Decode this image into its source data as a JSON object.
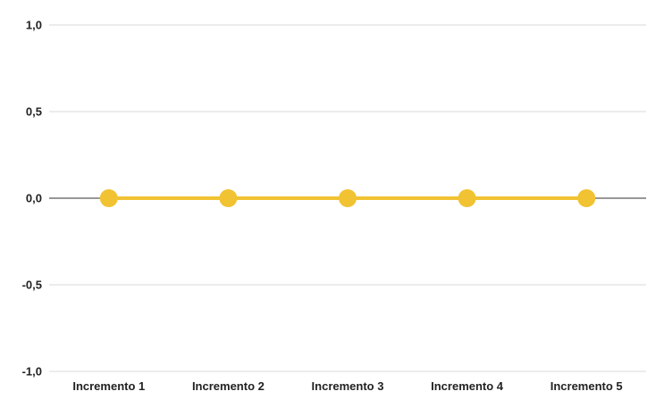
{
  "chart_data": {
    "type": "line",
    "title": "",
    "xlabel": "",
    "ylabel": "",
    "categories": [
      "Incremento 1",
      "Incremento 2",
      "Incremento 3",
      "Incremento 4",
      "Incremento 5"
    ],
    "series": [
      {
        "values": [
          0,
          0,
          0,
          0,
          0
        ],
        "color": "#f1c232"
      }
    ],
    "ylim": [
      -1.0,
      1.0
    ],
    "yticks": [
      1.0,
      0.5,
      0.0,
      -0.5,
      -1.0
    ],
    "ytick_labels": [
      "1,0",
      "0,5",
      "0,0",
      "-0,5",
      "-1,0"
    ],
    "grid": true,
    "legend": "none",
    "colors": {
      "grid": "#d9d9d9",
      "zero_line": "#757575",
      "text": "#222222"
    }
  }
}
